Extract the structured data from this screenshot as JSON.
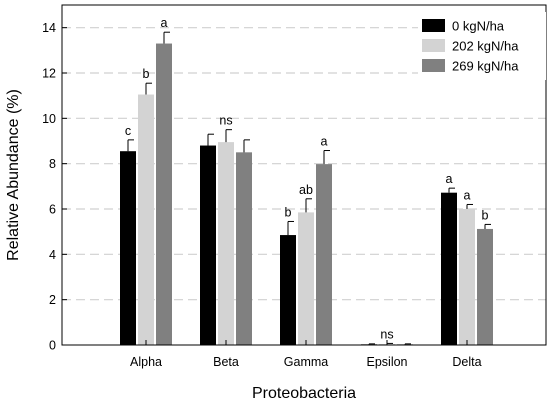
{
  "chart_data": {
    "type": "bar",
    "xlabel": "Proteobacteria",
    "ylabel": "Relative Abundance (%)",
    "ylim": [
      0,
      15
    ],
    "yticks": [
      0,
      2,
      4,
      6,
      8,
      10,
      12,
      14
    ],
    "grid": "horizontal dashed",
    "legend_position": "top-right",
    "categories": [
      "Alpha",
      "Beta",
      "Gamma",
      "Epsilon",
      "Delta"
    ],
    "series": [
      {
        "name": "0 kgN/ha",
        "color": "#000000",
        "values": [
          8.55,
          8.8,
          4.85,
          0.03,
          6.72
        ],
        "errors": [
          0.5,
          0.5,
          0.6,
          0.02,
          0.2
        ],
        "labels": [
          "c",
          "",
          "b",
          "",
          "a"
        ]
      },
      {
        "name": "202 kgN/ha",
        "color": "#d3d3d3",
        "values": [
          11.05,
          8.95,
          5.85,
          0.04,
          6.0
        ],
        "errors": [
          0.5,
          0.55,
          0.6,
          0.03,
          0.2
        ],
        "labels": [
          "b",
          "ns",
          "ab",
          "ns",
          "a"
        ]
      },
      {
        "name": "269 kgN/ha",
        "color": "#808080",
        "values": [
          13.3,
          8.5,
          7.98,
          0.03,
          5.12
        ],
        "errors": [
          0.5,
          0.55,
          0.6,
          0.02,
          0.2
        ],
        "labels": [
          "a",
          "",
          "a",
          "",
          "b"
        ]
      }
    ]
  }
}
